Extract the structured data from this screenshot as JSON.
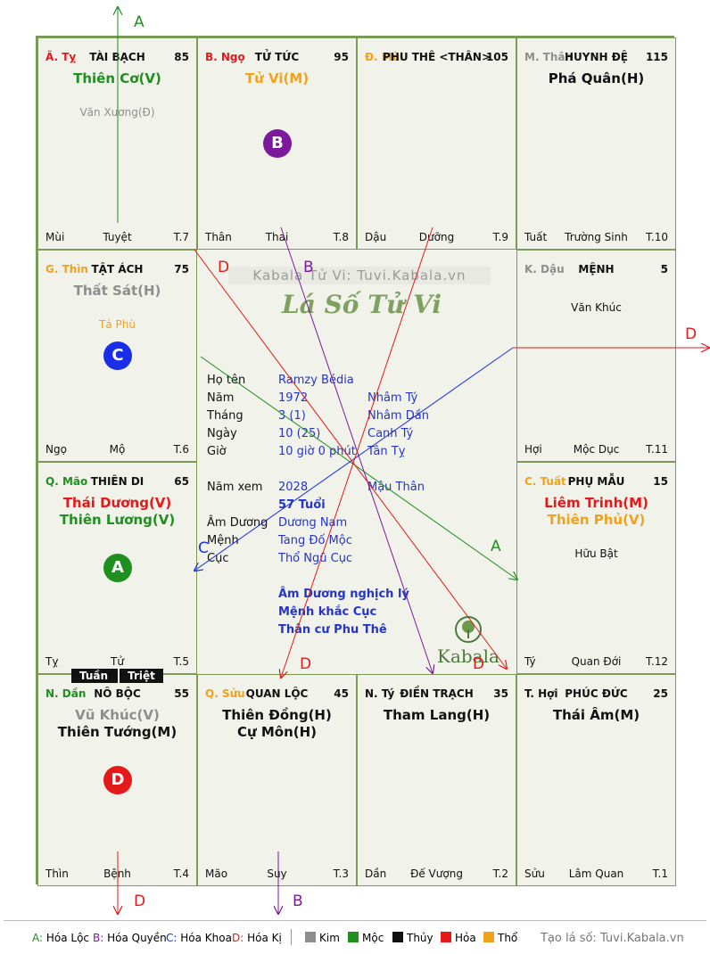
{
  "cells": [
    {
      "chi": "Ã. Tỵ",
      "chi_color": "#e41a1a",
      "palace": "TÀI BẠCH",
      "value": "85",
      "main_stars": [
        {
          "name": "Thiên Cơ(V)",
          "color": "#1f8f1f"
        }
      ],
      "minor_stars": [
        {
          "name": "Văn Xương(Đ)",
          "color": "#8e8e8e"
        }
      ],
      "footer": {
        "left": "Mùi",
        "mid": "Tuyệt",
        "right": "T.7"
      }
    },
    {
      "chi": "B. Ngọ",
      "chi_color": "#e41a1a",
      "palace": "TỬ TỨC",
      "value": "95",
      "main_stars": [
        {
          "name": "Tử Vi(M)",
          "color": "#f0a21a"
        }
      ],
      "minor_stars": [],
      "footer": {
        "left": "Thân",
        "mid": "Thai",
        "right": "T.8"
      }
    },
    {
      "chi": "Đ. Mùi",
      "chi_color": "#f0a21a",
      "palace": "PHU THÊ <THÂN>",
      "value": "105",
      "main_stars": [],
      "minor_stars": [],
      "footer": {
        "left": "Dậu",
        "mid": "Dưỡng",
        "right": "T.9"
      }
    },
    {
      "chi": "M. Thân",
      "chi_color": "#8e8e8e",
      "palace": "HUYNH ĐỆ",
      "value": "115",
      "main_stars": [
        {
          "name": "Phá Quân(H)",
          "color": "#111111"
        }
      ],
      "minor_stars": [],
      "footer": {
        "left": "Tuất",
        "mid": "Trường Sinh",
        "right": "T.10"
      }
    },
    {
      "chi": "G. Thìn",
      "chi_color": "#f0a21a",
      "palace": "TẬT ÁCH",
      "value": "75",
      "main_stars": [
        {
          "name": "Thất Sát(H)",
          "color": "#8e8e8e"
        }
      ],
      "minor_stars": [
        {
          "name": "Tả Phù",
          "color": "#f0a21a"
        }
      ],
      "footer": {
        "left": "Ngọ",
        "mid": "Mộ",
        "right": "T.6"
      }
    },
    {
      "chi": "K. Dậu",
      "chi_color": "#8e8e8e",
      "palace": "MỆNH",
      "value": "5",
      "main_stars": [],
      "minor_stars": [
        {
          "name": "Văn Khúc",
          "color": "#111111"
        }
      ],
      "footer": {
        "left": "Hợi",
        "mid": "Mộc Dục",
        "right": "T.11"
      }
    },
    {
      "chi": "Q. Mão",
      "chi_color": "#1f8f1f",
      "palace": "THIÊN DI",
      "value": "65",
      "main_stars": [
        {
          "name": "Thái Dương(V)",
          "color": "#e41a1a"
        },
        {
          "name": "Thiên Lương(V)",
          "color": "#1f8f1f"
        }
      ],
      "minor_stars": [],
      "footer": {
        "left": "Tỵ",
        "mid": "Tử",
        "right": "T.5"
      }
    },
    {
      "chi": "C. Tuất",
      "chi_color": "#f0a21a",
      "palace": "PHỤ MẪU",
      "value": "15",
      "main_stars": [
        {
          "name": "Liêm Trinh(M)",
          "color": "#e41a1a"
        },
        {
          "name": "Thiên Phủ(V)",
          "color": "#f0a21a"
        }
      ],
      "minor_stars": [
        {
          "name": "Hữu Bật",
          "color": "#111111"
        }
      ],
      "footer": {
        "left": "Tý",
        "mid": "Quan Đới",
        "right": "T.12"
      }
    },
    {
      "chi": "N. Dần",
      "chi_color": "#1f8f1f",
      "palace": "NÔ BỘC",
      "value": "55",
      "main_stars": [
        {
          "name": "Vũ Khúc(V)",
          "color": "#8e8e8e"
        },
        {
          "name": "Thiên Tướng(M)",
          "color": "#111111"
        }
      ],
      "minor_stars": [],
      "footer": {
        "left": "Thìn",
        "mid": "Bệnh",
        "right": "T.4"
      }
    },
    {
      "chi": "Q. Sửu",
      "chi_color": "#f0a21a",
      "palace": "QUAN LỘC",
      "value": "45",
      "main_stars": [
        {
          "name": "Thiên Đồng(H)",
          "color": "#111111"
        },
        {
          "name": "Cự Môn(H)",
          "color": "#111111"
        }
      ],
      "minor_stars": [],
      "footer": {
        "left": "Mão",
        "mid": "Suy",
        "right": "T.3"
      }
    },
    {
      "chi": "N. Tý",
      "chi_color": "#111111",
      "palace": "ĐIỀN TRẠCH",
      "value": "35",
      "main_stars": [
        {
          "name": "Tham Lang(H)",
          "color": "#111111"
        }
      ],
      "minor_stars": [],
      "footer": {
        "left": "Dần",
        "mid": "Đế Vượng",
        "right": "T.2"
      }
    },
    {
      "chi": "T. Hợi",
      "chi_color": "#111111",
      "palace": "PHÚC ĐỨC",
      "value": "25",
      "main_stars": [
        {
          "name": "Thái Âm(M)",
          "color": "#111111"
        }
      ],
      "minor_stars": [],
      "footer": {
        "left": "Sửu",
        "mid": "Lâm Quan",
        "right": "T.1"
      }
    }
  ],
  "circles": [
    {
      "label": "B",
      "color": "#7b1a9a"
    },
    {
      "label": "C",
      "color": "#1a2ee8"
    },
    {
      "label": "A",
      "color": "#1f8f1f"
    },
    {
      "label": "D",
      "color": "#e41a1a"
    }
  ],
  "tuan_triet": {
    "tuan": "Tuần",
    "triet": "Triệt"
  },
  "center": {
    "watermark": "Kabala Tử Vi: Tuvi.Kabala.vn",
    "calligraphy": "Lá Số Tử Vi",
    "rows": [
      {
        "label": "Họ tên",
        "v1": "Ramzy Bédia",
        "v2": ""
      },
      {
        "label": "Năm",
        "v1": "1972",
        "v2": "Nhâm Tý"
      },
      {
        "label": "Tháng",
        "v1": "3  (1)",
        "v2": "Nhâm Dần"
      },
      {
        "label": "Ngày",
        "v1": "10  (25)",
        "v2": "Canh Tý"
      },
      {
        "label": "Giờ",
        "v1": "10 giờ 0 phút",
        "v2": "Tân Tỵ"
      }
    ],
    "nam_xem": {
      "label": "Năm xem",
      "v1": "2028",
      "v2": "Mậu Thân"
    },
    "age": "57 Tuổi",
    "rows2": [
      {
        "label": "Âm Dương",
        "v1": "Dương Nam"
      },
      {
        "label": "Mệnh",
        "v1": "Tang Đố Mộc"
      },
      {
        "label": "Cục",
        "v1": "Thổ Ngũ Cục"
      }
    ],
    "notes": [
      "Âm Dương nghịch lý",
      "Mệnh khắc Cục",
      "Thân cư Phu Thê"
    ],
    "logo_text": "Kabala"
  },
  "arrow_labels": {
    "A": "A",
    "B": "B",
    "C": "C",
    "D": "D"
  },
  "arrow_colors": {
    "A": "#1f8f1f",
    "B": "#7b1a9a",
    "C": "#1a2ee8",
    "D": "#e41a1a"
  },
  "legend": {
    "items": [
      {
        "key": "A:",
        "text": " Hóa Lộc",
        "color": "#1f8f1f"
      },
      {
        "key": "B:",
        "text": " Hóa Quyền",
        "color": "#7b1a9a"
      },
      {
        "key": "C:",
        "text": " Hóa Khoa",
        "color": "#1a2ee8"
      },
      {
        "key": "D:",
        "text": " Hóa Kị",
        "color": "#e41a1a"
      }
    ],
    "elements": [
      {
        "name": "Kim",
        "color": "#8e8e8e"
      },
      {
        "name": "Mộc",
        "color": "#1f8f1f"
      },
      {
        "name": "Thủy",
        "color": "#111111"
      },
      {
        "name": "Hỏa",
        "color": "#e41a1a"
      },
      {
        "name": "Thổ",
        "color": "#f0a21a"
      }
    ],
    "credit": "Tạo lá số: Tuvi.Kabala.vn"
  }
}
